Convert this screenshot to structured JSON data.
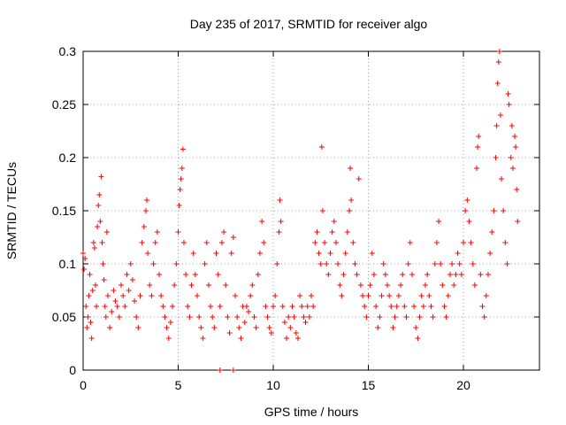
{
  "chart_data": {
    "type": "scatter",
    "title": "Day 235 of 2017, SRMTID for receiver algo",
    "xlabel": "GPS time / hours",
    "ylabel": "SRMTID / TECUs",
    "xlim": [
      0,
      24
    ],
    "ylim": [
      0,
      0.3
    ],
    "x_ticks": [
      0,
      5,
      10,
      15,
      20
    ],
    "x_tick_labels": [
      "0",
      "5",
      "10",
      "15",
      "20"
    ],
    "y_ticks": [
      0,
      0.05,
      0.1,
      0.15,
      0.2,
      0.25,
      0.3
    ],
    "y_tick_labels": [
      "0",
      "0.05",
      "0.1",
      "0.15",
      "0.2",
      "0.25",
      "0.3"
    ],
    "grid": true,
    "marker": "+",
    "color": "#ff0000",
    "series": [
      {
        "name": "SRMTID",
        "points": [
          [
            0.0,
            0.11
          ],
          [
            0.05,
            0.095
          ],
          [
            0.1,
            0.105
          ],
          [
            0.15,
            0.06
          ],
          [
            0.2,
            0.04
          ],
          [
            0.25,
            0.05
          ],
          [
            0.3,
            0.07
          ],
          [
            0.35,
            0.09
          ],
          [
            0.4,
            0.045
          ],
          [
            0.45,
            0.03
          ],
          [
            0.5,
            0.075
          ],
          [
            0.55,
            0.12
          ],
          [
            0.6,
            0.115
          ],
          [
            0.65,
            0.08
          ],
          [
            0.7,
            0.06
          ],
          [
            0.75,
            0.135
          ],
          [
            0.8,
            0.155
          ],
          [
            0.85,
            0.165
          ],
          [
            0.9,
            0.14
          ],
          [
            0.95,
            0.182
          ],
          [
            1.0,
            0.12
          ],
          [
            1.05,
            0.1
          ],
          [
            1.1,
            0.085
          ],
          [
            1.15,
            0.06
          ],
          [
            1.2,
            0.05
          ],
          [
            1.25,
            0.13
          ],
          [
            1.3,
            0.07
          ],
          [
            1.4,
            0.04
          ],
          [
            1.5,
            0.055
          ],
          [
            1.6,
            0.075
          ],
          [
            1.7,
            0.065
          ],
          [
            1.8,
            0.06
          ],
          [
            1.9,
            0.05
          ],
          [
            2.0,
            0.08
          ],
          [
            2.1,
            0.07
          ],
          [
            2.2,
            0.06
          ],
          [
            2.3,
            0.09
          ],
          [
            2.4,
            0.075
          ],
          [
            2.5,
            0.1
          ],
          [
            2.6,
            0.085
          ],
          [
            2.7,
            0.065
          ],
          [
            2.8,
            0.05
          ],
          [
            2.9,
            0.04
          ],
          [
            3.0,
            0.07
          ],
          [
            3.1,
            0.12
          ],
          [
            3.2,
            0.135
          ],
          [
            3.3,
            0.15
          ],
          [
            3.35,
            0.16
          ],
          [
            3.4,
            0.11
          ],
          [
            3.5,
            0.08
          ],
          [
            3.6,
            0.07
          ],
          [
            3.7,
            0.1
          ],
          [
            3.8,
            0.12
          ],
          [
            3.9,
            0.13
          ],
          [
            4.0,
            0.09
          ],
          [
            4.1,
            0.07
          ],
          [
            4.2,
            0.06
          ],
          [
            4.3,
            0.05
          ],
          [
            4.4,
            0.04
          ],
          [
            4.5,
            0.03
          ],
          [
            4.6,
            0.045
          ],
          [
            4.7,
            0.06
          ],
          [
            4.8,
            0.08
          ],
          [
            4.9,
            0.1
          ],
          [
            5.0,
            0.13
          ],
          [
            5.05,
            0.155
          ],
          [
            5.1,
            0.17
          ],
          [
            5.15,
            0.18
          ],
          [
            5.2,
            0.19
          ],
          [
            5.25,
            0.208
          ],
          [
            5.3,
            0.12
          ],
          [
            5.4,
            0.09
          ],
          [
            5.5,
            0.06
          ],
          [
            5.6,
            0.05
          ],
          [
            5.7,
            0.08
          ],
          [
            5.8,
            0.11
          ],
          [
            5.9,
            0.09
          ],
          [
            6.0,
            0.07
          ],
          [
            6.1,
            0.05
          ],
          [
            6.2,
            0.04
          ],
          [
            6.3,
            0.03
          ],
          [
            6.4,
            0.1
          ],
          [
            6.5,
            0.12
          ],
          [
            6.6,
            0.08
          ],
          [
            6.7,
            0.06
          ],
          [
            6.8,
            0.05
          ],
          [
            6.9,
            0.04
          ],
          [
            7.0,
            0.11
          ],
          [
            7.1,
            0.09
          ],
          [
            7.2,
            0.06
          ],
          [
            7.3,
            0.12
          ],
          [
            7.4,
            0.13
          ],
          [
            7.5,
            0.08
          ],
          [
            7.6,
            0.05
          ],
          [
            7.7,
            0.035
          ],
          [
            7.8,
            0.11
          ],
          [
            7.9,
            0.125
          ],
          [
            8.0,
            0.07
          ],
          [
            8.1,
            0.05
          ],
          [
            8.2,
            0.04
          ],
          [
            8.3,
            0.03
          ],
          [
            8.4,
            0.06
          ],
          [
            8.5,
            0.045
          ],
          [
            8.6,
            0.06
          ],
          [
            8.7,
            0.055
          ],
          [
            8.8,
            0.07
          ],
          [
            8.9,
            0.08
          ],
          [
            9.0,
            0.05
          ],
          [
            9.1,
            0.04
          ],
          [
            9.2,
            0.09
          ],
          [
            9.3,
            0.11
          ],
          [
            9.4,
            0.14
          ],
          [
            9.5,
            0.12
          ],
          [
            9.6,
            0.06
          ],
          [
            9.7,
            0.05
          ],
          [
            9.8,
            0.04
          ],
          [
            9.9,
            0.035
          ],
          [
            10.0,
            0.06
          ],
          [
            10.1,
            0.07
          ],
          [
            10.2,
            0.1
          ],
          [
            10.3,
            0.13
          ],
          [
            10.35,
            0.16
          ],
          [
            10.4,
            0.14
          ],
          [
            10.5,
            0.06
          ],
          [
            10.6,
            0.045
          ],
          [
            10.7,
            0.03
          ],
          [
            10.8,
            0.05
          ],
          [
            10.9,
            0.04
          ],
          [
            11.0,
            0.06
          ],
          [
            11.1,
            0.05
          ],
          [
            11.2,
            0.035
          ],
          [
            11.3,
            0.03
          ],
          [
            11.4,
            0.07
          ],
          [
            11.5,
            0.06
          ],
          [
            11.6,
            0.05
          ],
          [
            11.7,
            0.045
          ],
          [
            11.8,
            0.06
          ],
          [
            11.9,
            0.05
          ],
          [
            12.0,
            0.07
          ],
          [
            12.1,
            0.06
          ],
          [
            12.2,
            0.12
          ],
          [
            12.3,
            0.13
          ],
          [
            12.4,
            0.11
          ],
          [
            12.5,
            0.1
          ],
          [
            12.55,
            0.21
          ],
          [
            12.6,
            0.15
          ],
          [
            12.7,
            0.12
          ],
          [
            12.8,
            0.1
          ],
          [
            12.9,
            0.09
          ],
          [
            13.0,
            0.11
          ],
          [
            13.1,
            0.13
          ],
          [
            13.2,
            0.14
          ],
          [
            13.3,
            0.12
          ],
          [
            13.4,
            0.1
          ],
          [
            13.5,
            0.08
          ],
          [
            13.6,
            0.07
          ],
          [
            13.7,
            0.09
          ],
          [
            13.8,
            0.11
          ],
          [
            13.9,
            0.13
          ],
          [
            14.0,
            0.15
          ],
          [
            14.05,
            0.19
          ],
          [
            14.1,
            0.16
          ],
          [
            14.2,
            0.12
          ],
          [
            14.3,
            0.1
          ],
          [
            14.4,
            0.09
          ],
          [
            14.5,
            0.18
          ],
          [
            14.6,
            0.08
          ],
          [
            14.7,
            0.07
          ],
          [
            14.8,
            0.06
          ],
          [
            14.9,
            0.05
          ],
          [
            15.0,
            0.07
          ],
          [
            15.1,
            0.08
          ],
          [
            15.2,
            0.11
          ],
          [
            15.3,
            0.09
          ],
          [
            15.4,
            0.06
          ],
          [
            15.5,
            0.04
          ],
          [
            15.6,
            0.05
          ],
          [
            15.7,
            0.07
          ],
          [
            15.8,
            0.1
          ],
          [
            15.9,
            0.09
          ],
          [
            16.0,
            0.08
          ],
          [
            16.1,
            0.07
          ],
          [
            16.2,
            0.06
          ],
          [
            16.3,
            0.04
          ],
          [
            16.4,
            0.05
          ],
          [
            16.5,
            0.06
          ],
          [
            16.6,
            0.07
          ],
          [
            16.7,
            0.08
          ],
          [
            16.8,
            0.09
          ],
          [
            16.9,
            0.06
          ],
          [
            17.0,
            0.05
          ],
          [
            17.1,
            0.1
          ],
          [
            17.2,
            0.12
          ],
          [
            17.3,
            0.09
          ],
          [
            17.4,
            0.06
          ],
          [
            17.5,
            0.04
          ],
          [
            17.6,
            0.03
          ],
          [
            17.7,
            0.05
          ],
          [
            17.8,
            0.07
          ],
          [
            17.9,
            0.06
          ],
          [
            18.0,
            0.08
          ],
          [
            18.1,
            0.09
          ],
          [
            18.2,
            0.07
          ],
          [
            18.3,
            0.06
          ],
          [
            18.4,
            0.05
          ],
          [
            18.5,
            0.1
          ],
          [
            18.6,
            0.12
          ],
          [
            18.7,
            0.14
          ],
          [
            18.8,
            0.1
          ],
          [
            18.9,
            0.08
          ],
          [
            19.0,
            0.06
          ],
          [
            19.1,
            0.05
          ],
          [
            19.2,
            0.07
          ],
          [
            19.3,
            0.09
          ],
          [
            19.4,
            0.1
          ],
          [
            19.5,
            0.08
          ],
          [
            19.6,
            0.09
          ],
          [
            19.7,
            0.11
          ],
          [
            19.8,
            0.1
          ],
          [
            19.9,
            0.09
          ],
          [
            20.0,
            0.12
          ],
          [
            20.1,
            0.15
          ],
          [
            20.2,
            0.16
          ],
          [
            20.3,
            0.14
          ],
          [
            20.4,
            0.12
          ],
          [
            20.5,
            0.1
          ],
          [
            20.6,
            0.08
          ],
          [
            20.7,
            0.19
          ],
          [
            20.75,
            0.21
          ],
          [
            20.8,
            0.22
          ],
          [
            20.9,
            0.09
          ],
          [
            21.0,
            0.06
          ],
          [
            21.1,
            0.05
          ],
          [
            21.2,
            0.07
          ],
          [
            21.3,
            0.09
          ],
          [
            21.4,
            0.11
          ],
          [
            21.5,
            0.13
          ],
          [
            21.6,
            0.15
          ],
          [
            21.7,
            0.2
          ],
          [
            21.75,
            0.23
          ],
          [
            21.8,
            0.27
          ],
          [
            21.85,
            0.29
          ],
          [
            21.9,
            0.3
          ],
          [
            21.95,
            0.24
          ],
          [
            22.0,
            0.18
          ],
          [
            22.1,
            0.15
          ],
          [
            22.2,
            0.12
          ],
          [
            22.3,
            0.1
          ],
          [
            22.35,
            0.26
          ],
          [
            22.4,
            0.25
          ],
          [
            22.5,
            0.2
          ],
          [
            22.55,
            0.23
          ],
          [
            22.6,
            0.19
          ],
          [
            22.7,
            0.22
          ],
          [
            22.75,
            0.21
          ],
          [
            22.8,
            0.17
          ],
          [
            22.85,
            0.14
          ]
        ]
      }
    ],
    "zero_points": [
      [
        7.2,
        0
      ],
      [
        7.9,
        0
      ]
    ]
  }
}
